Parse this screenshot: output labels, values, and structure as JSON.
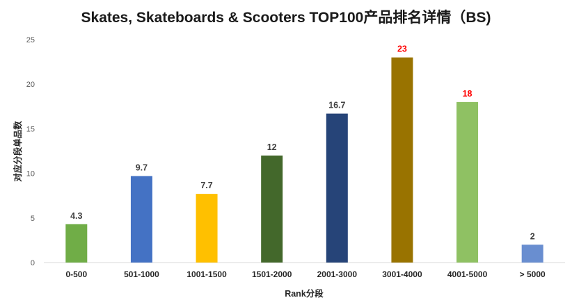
{
  "chart_data": {
    "type": "bar",
    "title": "Skates, Skateboards & Scooters TOP100产品排名详情（BS)",
    "xlabel": "Rank分段",
    "ylabel": "对应分段单品数",
    "categories": [
      "0-500",
      "501-1000",
      "1001-1500",
      "1501-2000",
      "2001-3000",
      "3001-4000",
      "4001-5000",
      "> 5000"
    ],
    "values": [
      4.3,
      9.7,
      7.7,
      12,
      16.7,
      23,
      18,
      2
    ],
    "data_labels": [
      "4.3",
      "9.7",
      "7.7",
      "12",
      "16.7",
      "23",
      "18",
      "2"
    ],
    "bar_colors": [
      "#70ad47",
      "#4472c4",
      "#ffc000",
      "#43682b",
      "#264478",
      "#997300",
      "#8fc163",
      "#698ed0"
    ],
    "label_colors": [
      "#404040",
      "#404040",
      "#404040",
      "#404040",
      "#404040",
      "#ff0000",
      "#ff0000",
      "#404040"
    ],
    "ylim": [
      0,
      25
    ],
    "yticks": [
      0,
      5,
      10,
      15,
      20,
      25
    ],
    "grid": false,
    "legend": "none"
  }
}
